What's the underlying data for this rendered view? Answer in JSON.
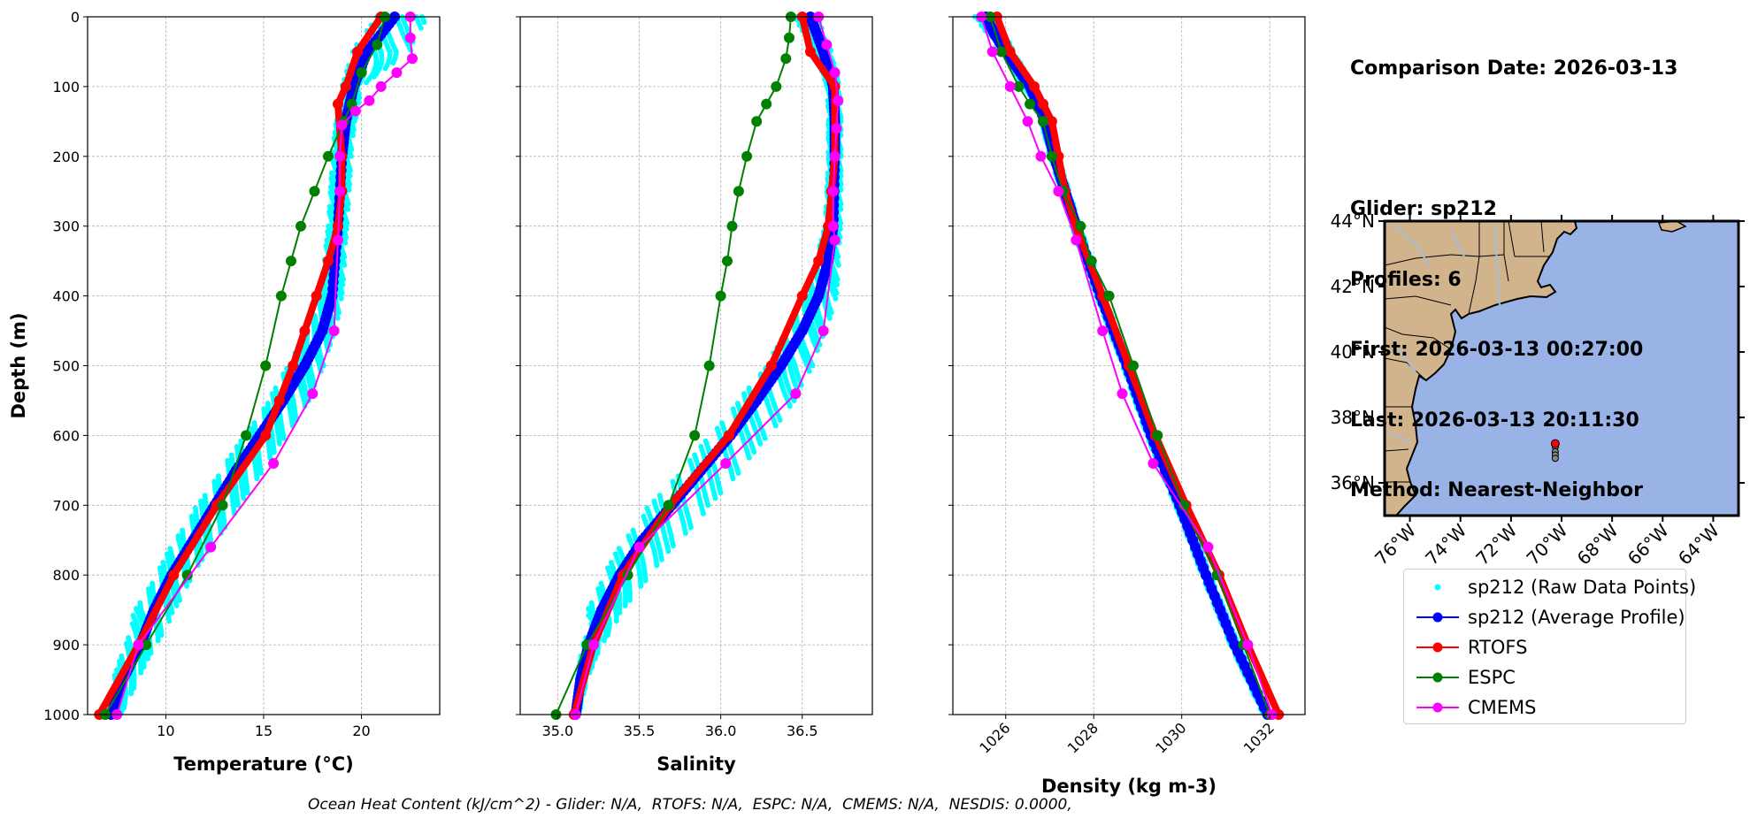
{
  "info": {
    "comparison_date": "Comparison Date: 2026-03-13",
    "glider": "Glider: sp212",
    "profiles": "Profiles: 6",
    "first": "First: 2026-03-13 00:27:00",
    "last": "Last: 2026-03-13 20:11:30",
    "method": "Method: Nearest-Neighbor"
  },
  "footer": "Ocean Heat Content (kJ/cm^2) - Glider: N/A,  RTOFS: N/A,  ESPC: N/A,  CMEMS: N/A,  NESDIS: 0.0000,",
  "legend": [
    {
      "label": "sp212 (Raw Data Points)",
      "color": "#00ffff",
      "style": "points"
    },
    {
      "label": "sp212 (Average Profile)",
      "color": "#0000ff",
      "style": "line-marker"
    },
    {
      "label": "RTOFS",
      "color": "#ff0000",
      "style": "line-marker"
    },
    {
      "label": "ESPC",
      "color": "#008000",
      "style": "line-marker"
    },
    {
      "label": "CMEMS",
      "color": "#ff00ff",
      "style": "line-marker"
    }
  ],
  "colors": {
    "raw": "#00ffff",
    "avg": "#0000ff",
    "rtofs": "#ff0000",
    "espc": "#008000",
    "cmems": "#ff00ff",
    "land": "#d2b48c",
    "ocean": "#99b3e6",
    "river": "#a6bddb"
  },
  "chart_data": [
    {
      "type": "line",
      "xlabel": "Temperature (°C)",
      "ylabel": "Depth (m)",
      "xlim": [
        6,
        24
      ],
      "ylim": [
        1000,
        0
      ],
      "xticks": [
        10,
        15,
        20
      ],
      "yticks": [
        0,
        100,
        200,
        300,
        400,
        500,
        600,
        700,
        800,
        900,
        1000
      ],
      "grid": true,
      "series": [
        {
          "name": "sp212 (Average Profile)",
          "depth": [
            0,
            50,
            100,
            150,
            200,
            300,
            400,
            450,
            500,
            550,
            600,
            650,
            700,
            750,
            800,
            850,
            900,
            950,
            1000
          ],
          "values": [
            21.7,
            20.3,
            19.6,
            19.2,
            19.0,
            18.8,
            18.5,
            18.0,
            17.1,
            16.0,
            14.8,
            13.6,
            12.5,
            11.4,
            10.3,
            9.4,
            8.7,
            7.8,
            7.2
          ]
        },
        {
          "name": "RTOFS",
          "depth": [
            0,
            50,
            100,
            125,
            200,
            250,
            300,
            350,
            400,
            450,
            500,
            550,
            600,
            700,
            800,
            900,
            1000
          ],
          "values": [
            21.0,
            19.8,
            19.2,
            18.8,
            19.0,
            19.0,
            18.8,
            18.3,
            17.7,
            17.1,
            16.5,
            15.8,
            15.1,
            12.6,
            10.4,
            8.6,
            6.6
          ]
        },
        {
          "name": "ESPC",
          "depth": [
            0,
            40,
            80,
            125,
            150,
            200,
            250,
            300,
            350,
            400,
            500,
            600,
            700,
            800,
            900,
            1000
          ],
          "values": [
            21.2,
            20.8,
            20.0,
            19.5,
            19.1,
            18.3,
            17.6,
            16.9,
            16.4,
            15.9,
            15.1,
            14.1,
            12.9,
            11.1,
            9.0,
            6.9
          ]
        },
        {
          "name": "CMEMS",
          "depth": [
            0,
            30,
            60,
            80,
            100,
            120,
            135,
            155,
            200,
            250,
            320,
            450,
            540,
            640,
            760,
            900,
            1000
          ],
          "values": [
            22.5,
            22.5,
            22.6,
            21.8,
            21.0,
            20.4,
            19.7,
            19.0,
            18.9,
            18.9,
            18.8,
            18.6,
            17.5,
            15.5,
            12.3,
            8.6,
            7.5
          ]
        }
      ],
      "raw_envelope": {
        "depth": [
          0,
          50,
          100,
          150,
          200,
          300,
          400,
          450,
          500,
          550,
          600,
          650,
          700,
          750,
          800,
          850,
          900,
          950,
          1000
        ],
        "min": [
          20.8,
          19.5,
          19.0,
          18.7,
          18.5,
          18.3,
          17.9,
          17.3,
          16.2,
          15.2,
          14.0,
          12.8,
          11.6,
          10.4,
          9.5,
          8.4,
          7.9,
          7.3,
          7.0
        ],
        "max": [
          23.5,
          22.5,
          20.0,
          19.7,
          19.5,
          19.3,
          19.0,
          18.7,
          18.1,
          17.3,
          16.2,
          15.0,
          13.8,
          12.6,
          11.4,
          10.5,
          9.5,
          8.6,
          7.7
        ]
      }
    },
    {
      "type": "line",
      "xlabel": "Salinity",
      "xlim": [
        34.77,
        36.93
      ],
      "ylim": [
        1000,
        0
      ],
      "xticks": [
        35.0,
        35.5,
        36.0,
        36.5
      ],
      "xtick_labels": [
        "35.0",
        "35.5",
        "36.0",
        "36.5"
      ],
      "grid": true,
      "series": [
        {
          "name": "sp212 (Average Profile)",
          "depth": [
            0,
            50,
            100,
            150,
            200,
            300,
            350,
            400,
            450,
            500,
            550,
            600,
            650,
            700,
            750,
            800,
            850,
            900,
            950,
            1000
          ],
          "values": [
            36.55,
            36.63,
            36.69,
            36.7,
            36.7,
            36.69,
            36.66,
            36.6,
            36.5,
            36.37,
            36.22,
            36.06,
            35.88,
            35.7,
            35.52,
            35.38,
            35.27,
            35.19,
            35.14,
            35.11
          ]
        },
        {
          "name": "RTOFS",
          "depth": [
            0,
            50,
            100,
            200,
            250,
            300,
            350,
            400,
            500,
            600,
            700,
            800,
            900,
            1000
          ],
          "values": [
            36.5,
            36.55,
            36.7,
            36.7,
            36.68,
            36.66,
            36.6,
            36.5,
            36.31,
            36.05,
            35.69,
            35.4,
            35.22,
            35.1
          ]
        },
        {
          "name": "ESPC",
          "depth": [
            0,
            30,
            60,
            100,
            125,
            150,
            200,
            250,
            300,
            350,
            400,
            500,
            600,
            700,
            800,
            900,
            1000
          ],
          "values": [
            36.43,
            36.42,
            36.4,
            36.34,
            36.28,
            36.22,
            36.16,
            36.11,
            36.07,
            36.04,
            36.0,
            35.93,
            35.84,
            35.68,
            35.43,
            35.18,
            34.99
          ]
        },
        {
          "name": "CMEMS",
          "depth": [
            0,
            40,
            80,
            120,
            160,
            200,
            250,
            300,
            320,
            450,
            540,
            640,
            760,
            900,
            1000
          ],
          "values": [
            36.6,
            36.65,
            36.7,
            36.72,
            36.71,
            36.7,
            36.69,
            36.69,
            36.7,
            36.63,
            36.46,
            36.03,
            35.5,
            35.22,
            35.11
          ]
        }
      ],
      "raw_envelope": {
        "depth": [
          0,
          50,
          100,
          150,
          200,
          300,
          400,
          450,
          500,
          550,
          600,
          650,
          700,
          750,
          800,
          850,
          870,
          900,
          950,
          1000
        ],
        "min": [
          36.45,
          36.58,
          36.65,
          36.66,
          36.66,
          36.64,
          36.52,
          36.4,
          36.28,
          36.1,
          35.93,
          35.76,
          35.56,
          35.4,
          35.28,
          35.18,
          35.2,
          35.15,
          35.12,
          35.1
        ],
        "max": [
          36.6,
          36.68,
          36.73,
          36.74,
          36.74,
          36.74,
          36.71,
          36.65,
          36.57,
          36.45,
          36.3,
          36.13,
          35.94,
          35.75,
          35.57,
          35.4,
          35.35,
          35.27,
          35.18,
          35.13
        ]
      }
    },
    {
      "type": "line",
      "xlabel": "Density (kg m-3)",
      "xlim": [
        1024.8,
        1032.8
      ],
      "ylim": [
        1000,
        0
      ],
      "xticks": [
        1026,
        1028,
        1030,
        1032
      ],
      "grid": true,
      "series": [
        {
          "name": "sp212 (Average Profile)",
          "depth": [
            0,
            25,
            50,
            100,
            150,
            200,
            250,
            300,
            400,
            500,
            600,
            700,
            800,
            900,
            1000
          ],
          "values": [
            1025.55,
            1025.75,
            1026.0,
            1026.55,
            1026.9,
            1027.1,
            1027.35,
            1027.6,
            1028.15,
            1028.75,
            1029.3,
            1029.95,
            1030.55,
            1031.2,
            1031.95
          ]
        },
        {
          "name": "RTOFS",
          "depth": [
            0,
            50,
            100,
            125,
            150,
            200,
            250,
            300,
            400,
            500,
            600,
            700,
            800,
            900,
            1000
          ],
          "values": [
            1025.8,
            1026.1,
            1026.65,
            1026.85,
            1027.05,
            1027.2,
            1027.35,
            1027.6,
            1028.2,
            1028.8,
            1029.4,
            1030.1,
            1030.85,
            1031.5,
            1032.2
          ]
        },
        {
          "name": "ESPC",
          "depth": [
            0,
            50,
            100,
            125,
            150,
            200,
            250,
            300,
            350,
            400,
            500,
            600,
            700,
            800,
            900,
            1000
          ],
          "values": [
            1025.65,
            1025.9,
            1026.3,
            1026.55,
            1026.85,
            1027.05,
            1027.3,
            1027.7,
            1027.95,
            1028.35,
            1028.9,
            1029.45,
            1030.05,
            1030.8,
            1031.4,
            1032.0
          ]
        },
        {
          "name": "CMEMS",
          "depth": [
            0,
            50,
            100,
            150,
            200,
            250,
            320,
            450,
            540,
            640,
            760,
            900,
            1000
          ],
          "values": [
            1025.45,
            1025.7,
            1026.1,
            1026.5,
            1026.8,
            1027.2,
            1027.6,
            1028.2,
            1028.65,
            1029.35,
            1030.6,
            1031.5,
            1032.05
          ]
        }
      ],
      "raw_envelope": {
        "depth": [
          0,
          25,
          50,
          100,
          150,
          200,
          300,
          400,
          500,
          600,
          700,
          800,
          900,
          1000
        ],
        "min": [
          1025.3,
          1025.6,
          1025.9,
          1026.4,
          1026.8,
          1027.0,
          1027.5,
          1028.05,
          1028.65,
          1029.2,
          1029.85,
          1030.45,
          1031.1,
          1031.85
        ],
        "max": [
          1025.8,
          1026.0,
          1026.2,
          1026.65,
          1027.0,
          1027.2,
          1027.7,
          1028.25,
          1028.85,
          1029.4,
          1030.05,
          1030.65,
          1031.3,
          1032.0
        ]
      }
    },
    {
      "type": "map",
      "lat_ticks": [
        "44°N",
        "42°N",
        "40°N",
        "38°N",
        "36°N"
      ],
      "lat_values": [
        44,
        42,
        40,
        38,
        36
      ],
      "lon_ticks": [
        "76°W",
        "74°W",
        "72°W",
        "70°W",
        "68°W",
        "66°W",
        "64°W"
      ],
      "lon_values": [
        -76,
        -74,
        -72,
        -70,
        -68,
        -66,
        -64
      ],
      "extent": {
        "lon": [
          -77,
          -63
        ],
        "lat": [
          35,
          44
        ]
      },
      "glider_points": [
        {
          "lon": -70.25,
          "lat": 37.1
        },
        {
          "lon": -70.25,
          "lat": 36.95
        },
        {
          "lon": -70.25,
          "lat": 36.85
        },
        {
          "lon": -70.25,
          "lat": 36.75
        }
      ],
      "model_point": {
        "lon": -70.25,
        "lat": 37.2
      }
    }
  ]
}
